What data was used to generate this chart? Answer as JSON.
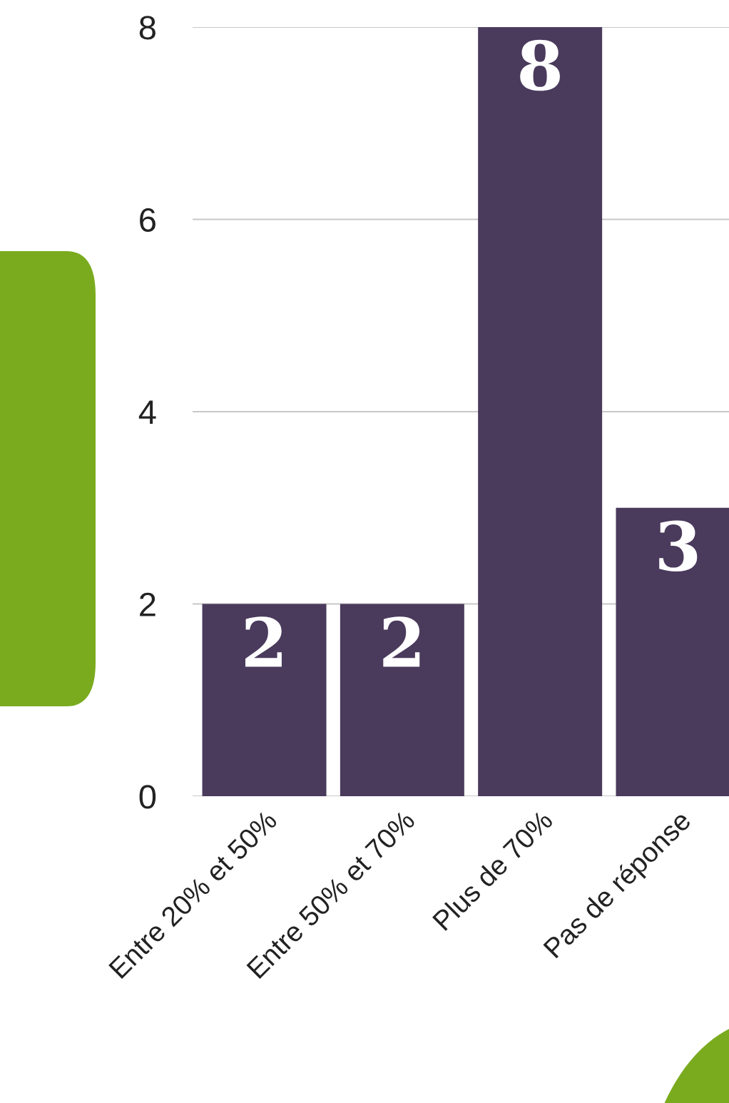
{
  "chart_data": {
    "type": "bar",
    "categories": [
      "Entre 20% et 50%",
      "Entre 50% et 70%",
      "Plus de 70%",
      "Pas de réponse"
    ],
    "values": [
      2,
      2,
      8,
      3
    ],
    "color": "#4a3a5c",
    "ylim": [
      0,
      8
    ],
    "yticks": [
      0,
      2,
      4,
      6,
      8
    ],
    "grid": "y",
    "data_labels": true,
    "legend": false
  }
}
